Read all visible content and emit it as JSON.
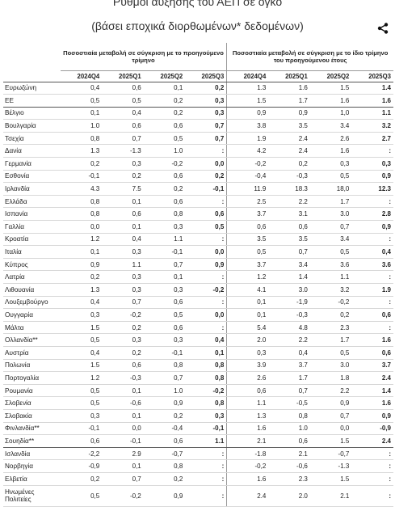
{
  "header": {
    "title": "Ρυθμοί αύξησης του ΑΕΠ σε όγκο",
    "subtitle": "(βάσει εποχικά διορθωμένων* δεδομένων)",
    "share_icon": "share-icon"
  },
  "table": {
    "group_left": "Ποσοστιαία μεταβολή σε σύγκριση με το προηγούμενο τρίμηνο",
    "group_right": "Ποσοστιαία μεταβολή σε σύγκριση με το ίδιο τρίμηνο του προηγούμενου έτους",
    "columns": [
      "2024Q4",
      "2025Q1",
      "2025Q2",
      "2025Q3",
      "2024Q4",
      "2025Q1",
      "2025Q2",
      "2025Q3"
    ],
    "rows": [
      {
        "country": "Ευρωζώνη",
        "v": [
          "0,4",
          "0,6",
          "0,1",
          "0,2",
          "1.3",
          "1.6",
          "1.5",
          "1.4"
        ]
      },
      {
        "country": "ΕΕ",
        "v": [
          "0,5",
          "0,5",
          "0,2",
          "0,3",
          "1.5",
          "1.7",
          "1.6",
          "1.6"
        ]
      },
      {
        "country": "Βέλγιο",
        "v": [
          "0,1",
          "0,4",
          "0,2",
          "0,3",
          "0,9",
          "0,9",
          "1,0",
          "1.1"
        ]
      },
      {
        "country": "Βουλγαρία",
        "v": [
          "1.0",
          "0,6",
          "0,6",
          "0,7",
          "3.8",
          "3.5",
          "3.4",
          "3.2"
        ]
      },
      {
        "country": "Τσεχία",
        "v": [
          "0,8",
          "0,7",
          "0,5",
          "0,7",
          "1.9",
          "2.4",
          "2.6",
          "2.7"
        ]
      },
      {
        "country": "Δανία",
        "v": [
          "1.3",
          "-1.3",
          "1.0",
          ":",
          "4.2",
          "2.4",
          "1.6",
          ":"
        ]
      },
      {
        "country": "Γερμανία",
        "v": [
          "0,2",
          "0,3",
          "-0,2",
          "0,0",
          "-0,2",
          "0,2",
          "0,3",
          "0,3"
        ]
      },
      {
        "country": "Εσθονία",
        "v": [
          "-0,1",
          "0,2",
          "0,6",
          "0,2",
          "-0,4",
          "-0,3",
          "0,5",
          "0,9"
        ]
      },
      {
        "country": "Ιρλανδία",
        "v": [
          "4.3",
          "7.5",
          "0,2",
          "-0,1",
          "11.9",
          "18.3",
          "18,0",
          "12.3"
        ]
      },
      {
        "country": "Ελλάδα",
        "v": [
          "0,8",
          "0,1",
          "0,6",
          ":",
          "2.5",
          "2.2",
          "1.7",
          ":"
        ]
      },
      {
        "country": "Ισπανία",
        "v": [
          "0,8",
          "0,6",
          "0,8",
          "0,6",
          "3.7",
          "3.1",
          "3.0",
          "2.8"
        ]
      },
      {
        "country": "Γαλλία",
        "v": [
          "0,0",
          "0,1",
          "0,3",
          "0,5",
          "0,6",
          "0,6",
          "0,7",
          "0,9"
        ]
      },
      {
        "country": "Κροατία",
        "v": [
          "1.2",
          "0,4",
          "1.1",
          ":",
          "3.5",
          "3.5",
          "3.4",
          ":"
        ]
      },
      {
        "country": "Ιταλία",
        "v": [
          "0,1",
          "0,3",
          "-0,1",
          "0,0",
          "0,5",
          "0,7",
          "0,5",
          "0,4"
        ]
      },
      {
        "country": "Κύπρος",
        "v": [
          "0,9",
          "1.1",
          "0,7",
          "0,9",
          "3.7",
          "3.4",
          "3.6",
          "3.6"
        ]
      },
      {
        "country": "Λατρία",
        "v": [
          "0,2",
          "0,3",
          "0,1",
          ":",
          "1.2",
          "1.4",
          "1.1",
          ":"
        ]
      },
      {
        "country": "Λιθουανία",
        "v": [
          "1.3",
          "0,3",
          "0,3",
          "-0,2",
          "4.1",
          "3.0",
          "3.2",
          "1.9"
        ]
      },
      {
        "country": "Λουξεμβούργο",
        "v": [
          "0,4",
          "0,7",
          "0,6",
          ":",
          "0,1",
          "-1,9",
          "-0,2",
          ":"
        ]
      },
      {
        "country": "Ουγγαρία",
        "v": [
          "0,3",
          "-0,2",
          "0,5",
          "0,0",
          "0,1",
          "-0,3",
          "0,2",
          "0,6"
        ]
      },
      {
        "country": "Μάλτα",
        "v": [
          "1.5",
          "0,2",
          "0,6",
          ":",
          "5.4",
          "4.8",
          "2.3",
          ":"
        ]
      },
      {
        "country": "Ολλανδία**",
        "v": [
          "0,5",
          "0,3",
          "0,3",
          "0,4",
          "2.0",
          "2.2",
          "1.7",
          "1.6"
        ]
      },
      {
        "country": "Αυστρία",
        "v": [
          "0,4",
          "0,2",
          "-0,1",
          "0,1",
          "0,3",
          "0,4",
          "0,5",
          "0,6"
        ]
      },
      {
        "country": "Πολωνία",
        "v": [
          "1.5",
          "0,6",
          "0,8",
          "0,8",
          "3.9",
          "3.7",
          "3.0",
          "3.7"
        ]
      },
      {
        "country": "Πορτογαλία",
        "v": [
          "1.2",
          "-0,3",
          "0,7",
          "0,8",
          "2.6",
          "1.7",
          "1.8",
          "2.4"
        ]
      },
      {
        "country": "Ρουμανία",
        "v": [
          "0,5",
          "0,1",
          "1.0",
          "-0,2",
          "0,6",
          "0,7",
          "2.2",
          "1.4"
        ]
      },
      {
        "country": "Σλοβενία",
        "v": [
          "0,5",
          "-0,6",
          "0,9",
          "0,8",
          "1.1",
          "-0,5",
          "0,9",
          "1.6"
        ]
      },
      {
        "country": "Σλοβακία",
        "v": [
          "0,3",
          "0,1",
          "0,2",
          "0,3",
          "1.3",
          "0,8",
          "0,7",
          "0,9"
        ]
      },
      {
        "country": "Φινλανδία**",
        "v": [
          "-0,1",
          "0,0",
          "-0,4",
          "-0,1",
          "1.6",
          "1.0",
          "0,0",
          "-0,9"
        ]
      },
      {
        "country": "Σουηδία**",
        "v": [
          "0,6",
          "-0,1",
          "0,6",
          "1.1",
          "2.1",
          "0,6",
          "1.5",
          "2.4"
        ]
      },
      {
        "country": "Ισλανδία",
        "v": [
          "-2,2",
          "2.9",
          "-0,7",
          ":",
          "-1.8",
          "2.1",
          "-0,7",
          ":"
        ]
      },
      {
        "country": "Νορβηγία",
        "v": [
          "-0,9",
          "0,1",
          "0,8",
          ":",
          "-0,2",
          "-0,6",
          "-1.3",
          ":"
        ]
      },
      {
        "country": "Ελβετία",
        "v": [
          "0,2",
          "0,7",
          "0,2",
          ":",
          "1.6",
          "2.3",
          "1.5",
          ":"
        ]
      },
      {
        "country": "Ηνωμένες Πολιτείες",
        "v": [
          "0,5",
          "-0,2",
          "0,9",
          ":",
          "2.4",
          "2.0",
          "2.1",
          ":"
        ]
      }
    ]
  }
}
